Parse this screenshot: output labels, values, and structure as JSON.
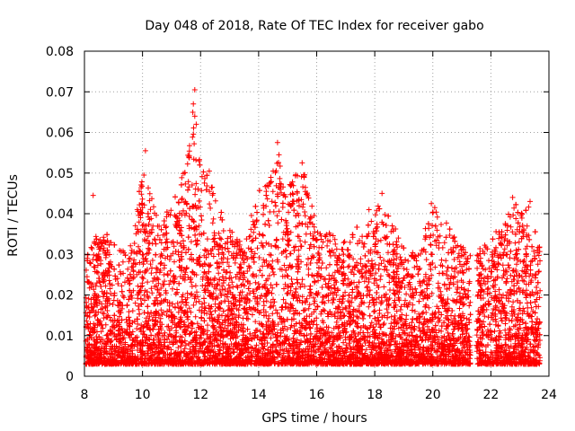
{
  "chart_data": {
    "type": "scatter",
    "title": "Day 048 of 2018, Rate Of TEC Index for receiver gabo",
    "xlabel": "GPS time / hours",
    "ylabel": "ROTI / TECUs",
    "xlim": [
      8,
      24
    ],
    "ylim": [
      0,
      0.08
    ],
    "xticks": [
      8,
      10,
      12,
      14,
      16,
      18,
      20,
      22,
      24
    ],
    "yticks": [
      0,
      0.01,
      0.02,
      0.03,
      0.04,
      0.05,
      0.06,
      0.07,
      0.08
    ],
    "xtick_labels": [
      "8",
      "10",
      "12",
      "14",
      "16",
      "18",
      "20",
      "22",
      "24"
    ],
    "ytick_labels": [
      "0",
      "0.01",
      "0.02",
      "0.03",
      "0.04",
      "0.05",
      "0.06",
      "0.07",
      "0.08"
    ],
    "grid": true,
    "marker": "plus",
    "marker_color": "#ff0000",
    "gap_x_range": [
      21.3,
      21.5
    ],
    "series": [
      {
        "name": "ROTI",
        "envelope": {
          "x": [
            8.05,
            8.5,
            9.0,
            9.5,
            10.0,
            10.3,
            10.6,
            11.0,
            11.5,
            11.8,
            12.0,
            12.3,
            12.6,
            13.0,
            13.5,
            14.0,
            14.5,
            14.7,
            15.0,
            15.5,
            16.0,
            16.5,
            17.0,
            17.5,
            18.0,
            18.3,
            18.6,
            19.0,
            19.5,
            20.0,
            20.5,
            20.9,
            21.25,
            21.55,
            22.0,
            22.5,
            22.8,
            23.0,
            23.3,
            23.7
          ],
          "ymax": [
            0.03,
            0.036,
            0.034,
            0.03,
            0.05,
            0.045,
            0.038,
            0.042,
            0.052,
            0.07,
            0.05,
            0.051,
            0.042,
            0.036,
            0.033,
            0.046,
            0.05,
            0.057,
            0.048,
            0.052,
            0.038,
            0.035,
            0.033,
            0.038,
            0.04,
            0.045,
            0.038,
            0.032,
            0.03,
            0.043,
            0.038,
            0.033,
            0.03,
            0.032,
            0.035,
            0.038,
            0.044,
            0.04,
            0.043,
            0.032
          ]
        },
        "floor": 0.003,
        "points_per_hour": 520
      }
    ],
    "highlights": [
      {
        "x": 8.3,
        "y": 0.0445
      },
      {
        "x": 10.1,
        "y": 0.0555
      },
      {
        "x": 10.05,
        "y": 0.0495
      },
      {
        "x": 11.35,
        "y": 0.0435
      },
      {
        "x": 11.8,
        "y": 0.0705
      },
      {
        "x": 11.75,
        "y": 0.067
      },
      {
        "x": 11.8,
        "y": 0.064
      },
      {
        "x": 11.85,
        "y": 0.062
      },
      {
        "x": 11.95,
        "y": 0.053
      },
      {
        "x": 12.3,
        "y": 0.0505
      },
      {
        "x": 14.65,
        "y": 0.0575
      },
      {
        "x": 14.7,
        "y": 0.0545
      },
      {
        "x": 14.5,
        "y": 0.0505
      },
      {
        "x": 15.5,
        "y": 0.0525
      },
      {
        "x": 15.55,
        "y": 0.0495
      },
      {
        "x": 18.25,
        "y": 0.045
      },
      {
        "x": 17.8,
        "y": 0.041
      },
      {
        "x": 19.95,
        "y": 0.0425
      },
      {
        "x": 22.75,
        "y": 0.044
      },
      {
        "x": 23.35,
        "y": 0.043
      },
      {
        "x": 23.6,
        "y": 0.031
      }
    ]
  }
}
